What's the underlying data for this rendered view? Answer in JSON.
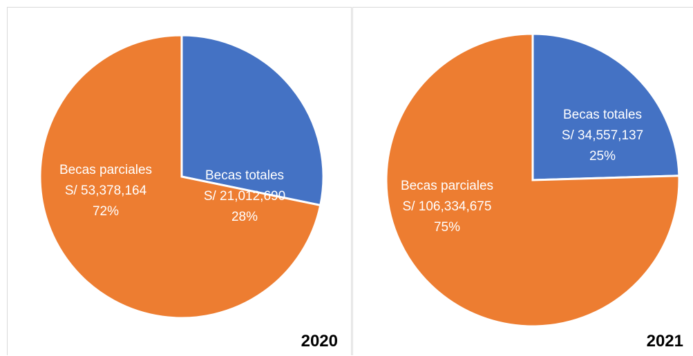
{
  "chart_data": [
    {
      "type": "pie",
      "year": "2020",
      "slices": [
        {
          "name": "Becas totales",
          "amount": "S/ 21,012,690",
          "percent": "28%",
          "value": 21012690,
          "color": "#4472C4"
        },
        {
          "name": "Becas parciales",
          "amount": "S/ 53,378,164",
          "percent": "72%",
          "value": 53378164,
          "color": "#ED7D31"
        }
      ]
    },
    {
      "type": "pie",
      "year": "2021",
      "slices": [
        {
          "name": "Becas totales",
          "amount": "S/ 34,557,137",
          "percent": "25%",
          "value": 34557137,
          "color": "#4472C4"
        },
        {
          "name": "Becas parciales",
          "amount": "S/ 106,334,675",
          "percent": "75%",
          "value": 106334675,
          "color": "#ED7D31"
        }
      ]
    }
  ]
}
